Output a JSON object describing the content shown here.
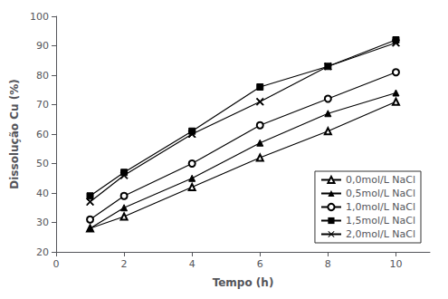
{
  "chart_data": {
    "type": "line",
    "xlabel": "Tempo (h)",
    "ylabel": "Dissolução Cu (%)",
    "x": [
      1,
      2,
      4,
      6,
      8,
      10
    ],
    "series": [
      {
        "name": "0,0mol/L NaCl",
        "values": [
          28,
          32,
          42,
          52,
          61,
          71
        ],
        "marker": "triangle-open",
        "color": "black",
        "line_style": "solid"
      },
      {
        "name": "0,5mol/L NaCl",
        "values": [
          28,
          35,
          45,
          57,
          67,
          74
        ],
        "marker": "triangle",
        "color": "black",
        "line_style": "solid"
      },
      {
        "name": "1,0mol/L NaCl",
        "values": [
          31,
          39,
          50,
          63,
          72,
          81
        ],
        "marker": "circle-open",
        "color": "black",
        "line_style": "solid"
      },
      {
        "name": "1,5mol/L NaCl",
        "values": [
          39,
          47,
          61,
          76,
          83,
          92
        ],
        "marker": "square",
        "color": "black",
        "line_style": "solid"
      },
      {
        "name": "2,0mol/L NaCl",
        "values": [
          37,
          46,
          60,
          71,
          83,
          91
        ],
        "marker": "x",
        "color": "black",
        "line_style": "solid"
      }
    ],
    "xlim": [
      0,
      11
    ],
    "ylim": [
      20,
      100
    ],
    "xticks": [
      0,
      2,
      4,
      6,
      8,
      10
    ],
    "yticks": [
      20,
      30,
      40,
      50,
      60,
      70,
      80,
      90,
      100
    ],
    "grid": false,
    "legend": "lower right"
  }
}
